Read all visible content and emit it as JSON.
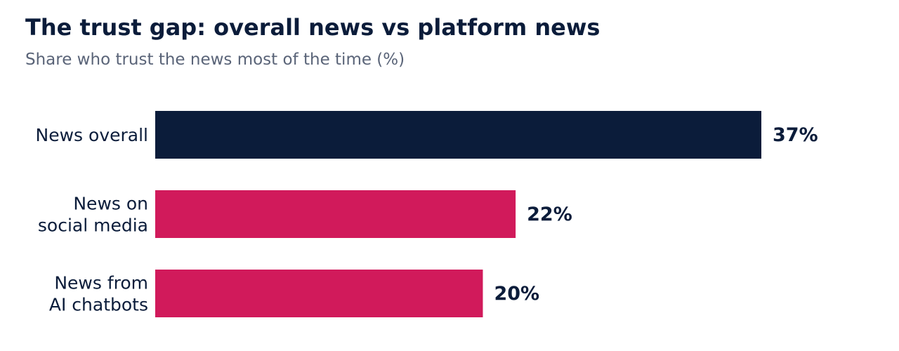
{
  "chart_data": {
    "type": "bar",
    "orientation": "horizontal",
    "title": "The trust gap: overall news vs platform news",
    "subtitle": "Share who trust the news most of the time (%)",
    "categories": [
      "News overall",
      "News on social media",
      "News from AI chatbots"
    ],
    "category_lines": [
      [
        "News overall"
      ],
      [
        "News on",
        "social media"
      ],
      [
        "News from",
        "AI chatbots"
      ]
    ],
    "values": [
      37,
      22,
      20
    ],
    "value_labels": [
      "37%",
      "22%",
      "20%"
    ],
    "colors": [
      "#0b1c3a",
      "#d11a5b",
      "#d11a5b"
    ],
    "xlim": [
      0,
      37
    ],
    "grid": false,
    "legend": "none"
  }
}
